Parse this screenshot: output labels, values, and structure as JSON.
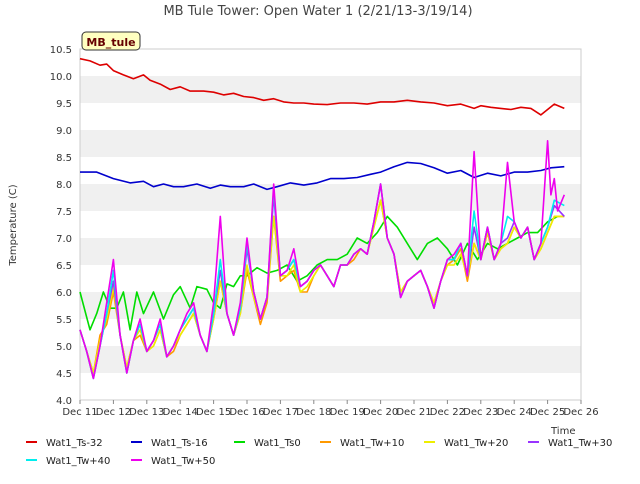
{
  "chart_data": {
    "type": "line",
    "title": "MB Tule Tower: Open Water 1 (2/21/13-3/19/14)",
    "ylabel": "Temperature (C)",
    "xlabel": "Time",
    "site_label": "MB_tule",
    "ylim": [
      4.0,
      10.5
    ],
    "yticks": [
      "4.0",
      "4.5",
      "5.0",
      "5.5",
      "6.0",
      "6.5",
      "7.0",
      "7.5",
      "8.0",
      "8.5",
      "9.0",
      "9.5",
      "10.0",
      "10.5"
    ],
    "xlim": [
      11,
      26
    ],
    "xticks": [
      {
        "v": 11,
        "label": "Dec 11"
      },
      {
        "v": 12,
        "label": "Dec 12"
      },
      {
        "v": 13,
        "label": "Dec 13"
      },
      {
        "v": 14,
        "label": "Dec 14"
      },
      {
        "v": 15,
        "label": "Dec 15"
      },
      {
        "v": 16,
        "label": "Dec 16"
      },
      {
        "v": 17,
        "label": "Dec 17"
      },
      {
        "v": 18,
        "label": "Dec 18"
      },
      {
        "v": 19,
        "label": "Dec 19"
      },
      {
        "v": 20,
        "label": "Dec 20"
      },
      {
        "v": 21,
        "label": "Dec 21"
      },
      {
        "v": 22,
        "label": "Dec 22"
      },
      {
        "v": 23,
        "label": "Dec 23"
      },
      {
        "v": 24,
        "label": "Dec 24"
      },
      {
        "v": 25,
        "label": "Dec 25"
      },
      {
        "v": 26,
        "label": "Dec 26"
      }
    ],
    "grid": "horizontal bands",
    "legend_position": "bottom",
    "series": [
      {
        "name": "Wat1_Ts-32",
        "color": "#dd0000",
        "x": [
          11.0,
          11.3,
          11.6,
          11.8,
          12.0,
          12.3,
          12.6,
          12.9,
          13.1,
          13.4,
          13.7,
          14.0,
          14.3,
          14.7,
          15.0,
          15.3,
          15.6,
          15.9,
          16.2,
          16.5,
          16.8,
          17.1,
          17.4,
          17.7,
          18.0,
          18.4,
          18.8,
          19.2,
          19.6,
          20.0,
          20.4,
          20.8,
          21.2,
          21.6,
          22.0,
          22.4,
          22.8,
          23.0,
          23.3,
          23.6,
          23.9,
          24.2,
          24.5,
          24.8,
          25.0,
          25.2,
          25.5
        ],
        "y": [
          10.32,
          10.28,
          10.2,
          10.22,
          10.1,
          10.02,
          9.95,
          10.02,
          9.92,
          9.85,
          9.75,
          9.8,
          9.72,
          9.72,
          9.7,
          9.65,
          9.68,
          9.62,
          9.6,
          9.55,
          9.58,
          9.52,
          9.5,
          9.5,
          9.48,
          9.47,
          9.5,
          9.5,
          9.48,
          9.52,
          9.52,
          9.55,
          9.52,
          9.5,
          9.45,
          9.48,
          9.4,
          9.45,
          9.42,
          9.4,
          9.38,
          9.42,
          9.4,
          9.28,
          9.38,
          9.48,
          9.4
        ]
      },
      {
        "name": "Wat1_Ts-16",
        "color": "#0000cc",
        "x": [
          11.0,
          11.5,
          12.0,
          12.5,
          12.9,
          13.2,
          13.5,
          13.8,
          14.1,
          14.5,
          14.9,
          15.2,
          15.5,
          15.9,
          16.2,
          16.6,
          16.9,
          17.3,
          17.7,
          18.1,
          18.5,
          18.9,
          19.3,
          19.7,
          20.0,
          20.4,
          20.8,
          21.2,
          21.6,
          22.0,
          22.4,
          22.8,
          23.2,
          23.6,
          24.0,
          24.4,
          24.8,
          25.1,
          25.5
        ],
        "y": [
          8.22,
          8.22,
          8.1,
          8.02,
          8.05,
          7.95,
          8.0,
          7.95,
          7.95,
          8.0,
          7.92,
          7.98,
          7.95,
          7.95,
          8.0,
          7.9,
          7.95,
          8.02,
          7.98,
          8.02,
          8.1,
          8.1,
          8.12,
          8.18,
          8.22,
          8.32,
          8.4,
          8.38,
          8.3,
          8.2,
          8.25,
          8.12,
          8.2,
          8.15,
          8.22,
          8.22,
          8.25,
          8.3,
          8.32
        ]
      },
      {
        "name": "Wat1_Ts0",
        "color": "#00dd00",
        "x": [
          11.0,
          11.3,
          11.5,
          11.7,
          11.9,
          12.1,
          12.3,
          12.5,
          12.7,
          12.9,
          13.2,
          13.5,
          13.8,
          14.0,
          14.3,
          14.5,
          14.8,
          15.0,
          15.2,
          15.4,
          15.6,
          15.8,
          16.0,
          16.3,
          16.6,
          16.9,
          17.2,
          17.5,
          17.8,
          18.1,
          18.4,
          18.7,
          19.0,
          19.3,
          19.6,
          19.9,
          20.2,
          20.5,
          20.8,
          21.1,
          21.4,
          21.7,
          22.0,
          22.3,
          22.6,
          22.9,
          23.2,
          23.5,
          23.8,
          24.1,
          24.4,
          24.7,
          25.0,
          25.3
        ],
        "y": [
          6.0,
          5.3,
          5.6,
          6.0,
          5.7,
          5.7,
          6.0,
          5.3,
          6.0,
          5.6,
          6.0,
          5.5,
          5.95,
          6.1,
          5.7,
          6.1,
          6.05,
          5.8,
          5.7,
          6.15,
          6.1,
          6.3,
          6.3,
          6.45,
          6.35,
          6.4,
          6.5,
          6.2,
          6.3,
          6.5,
          6.6,
          6.6,
          6.7,
          7.0,
          6.9,
          7.1,
          7.4,
          7.2,
          6.9,
          6.6,
          6.9,
          7.0,
          6.8,
          6.5,
          6.9,
          6.6,
          6.9,
          6.8,
          6.9,
          7.0,
          7.1,
          7.1,
          7.3,
          7.4
        ]
      },
      {
        "name": "Wat1_Tw+10",
        "color": "#ff9900",
        "x": [
          11.0,
          11.2,
          11.4,
          11.6,
          11.8,
          12.0,
          12.2,
          12.4,
          12.6,
          12.8,
          13.0,
          13.2,
          13.4,
          13.6,
          13.8,
          14.0,
          14.2,
          14.4,
          14.6,
          14.8,
          15.0,
          15.2,
          15.4,
          15.6,
          15.8,
          16.0,
          16.2,
          16.4,
          16.6,
          16.8,
          17.0,
          17.2,
          17.4,
          17.6,
          17.8,
          18.0,
          18.2,
          18.4,
          18.6,
          18.8,
          19.0,
          19.2,
          19.4,
          19.6,
          19.8,
          20.0,
          20.2,
          20.4,
          20.6,
          20.8,
          21.0,
          21.2,
          21.4,
          21.6,
          21.8,
          22.0,
          22.2,
          22.4,
          22.6,
          22.8,
          23.0,
          23.2,
          23.4,
          23.6,
          23.8,
          24.0,
          24.2,
          24.4,
          24.6,
          24.8,
          25.0,
          25.2,
          25.5
        ],
        "y": [
          5.3,
          4.9,
          4.5,
          5.2,
          5.4,
          6.0,
          5.2,
          4.6,
          5.1,
          5.2,
          4.9,
          5.0,
          5.3,
          4.8,
          4.9,
          5.2,
          5.4,
          5.6,
          5.2,
          4.9,
          5.5,
          6.2,
          5.6,
          5.2,
          5.6,
          6.4,
          5.9,
          5.4,
          5.8,
          7.4,
          6.2,
          6.3,
          6.4,
          6.0,
          6.0,
          6.3,
          6.5,
          6.3,
          6.1,
          6.5,
          6.5,
          6.6,
          6.8,
          6.7,
          7.2,
          7.7,
          7.0,
          6.7,
          6.0,
          6.2,
          6.3,
          6.4,
          6.1,
          5.8,
          6.2,
          6.5,
          6.6,
          6.8,
          6.2,
          6.9,
          6.6,
          7.1,
          6.6,
          6.8,
          6.9,
          7.2,
          7.0,
          7.2,
          6.6,
          6.8,
          7.1,
          7.4,
          7.4
        ]
      },
      {
        "name": "Wat1_Tw+20",
        "color": "#eeee00",
        "x": [
          11.0,
          11.2,
          11.4,
          11.6,
          11.8,
          12.0,
          12.2,
          12.4,
          12.6,
          12.8,
          13.0,
          13.2,
          13.4,
          13.6,
          13.8,
          14.0,
          14.2,
          14.4,
          14.6,
          14.8,
          15.0,
          15.2,
          15.4,
          15.6,
          15.8,
          16.0,
          16.2,
          16.4,
          16.6,
          16.8,
          17.0,
          17.2,
          17.4,
          17.6,
          17.8,
          18.0,
          18.2,
          18.4,
          18.6,
          18.8,
          19.0,
          19.2,
          19.4,
          19.6,
          19.8,
          20.0,
          20.2,
          20.4,
          20.6,
          20.8,
          21.0,
          21.2,
          21.4,
          21.6,
          21.8,
          22.0,
          22.2,
          22.4,
          22.6,
          22.8,
          23.0,
          23.2,
          23.4,
          23.6,
          23.8,
          24.0,
          24.2,
          24.4,
          24.6,
          24.8,
          25.0,
          25.2,
          25.5
        ],
        "y": [
          5.3,
          4.9,
          4.5,
          5.1,
          5.5,
          6.1,
          5.2,
          4.6,
          5.1,
          5.3,
          4.9,
          5.0,
          5.3,
          4.8,
          5.0,
          5.2,
          5.4,
          5.6,
          5.2,
          4.9,
          5.5,
          6.2,
          5.6,
          5.2,
          5.6,
          6.5,
          5.9,
          5.5,
          5.9,
          7.4,
          6.3,
          6.3,
          6.5,
          6.0,
          6.1,
          6.3,
          6.5,
          6.3,
          6.1,
          6.5,
          6.5,
          6.7,
          6.8,
          6.7,
          7.2,
          7.7,
          7.0,
          6.7,
          6.0,
          6.2,
          6.3,
          6.4,
          6.1,
          5.8,
          6.2,
          6.5,
          6.5,
          6.7,
          6.3,
          6.9,
          6.6,
          7.1,
          6.6,
          6.8,
          6.9,
          7.2,
          7.0,
          7.2,
          6.6,
          6.8,
          7.1,
          7.4,
          7.4
        ]
      },
      {
        "name": "Wat1_Tw+30",
        "color": "#9933ff",
        "x": [
          11.0,
          11.2,
          11.4,
          11.6,
          11.8,
          12.0,
          12.2,
          12.4,
          12.6,
          12.8,
          13.0,
          13.2,
          13.4,
          13.6,
          13.8,
          14.0,
          14.2,
          14.4,
          14.6,
          14.8,
          15.0,
          15.2,
          15.4,
          15.6,
          15.8,
          16.0,
          16.2,
          16.4,
          16.6,
          16.8,
          17.0,
          17.2,
          17.4,
          17.6,
          17.8,
          18.0,
          18.2,
          18.4,
          18.6,
          18.8,
          19.0,
          19.2,
          19.4,
          19.6,
          19.8,
          20.0,
          20.2,
          20.4,
          20.6,
          20.8,
          21.0,
          21.2,
          21.4,
          21.6,
          21.8,
          22.0,
          22.2,
          22.4,
          22.6,
          22.8,
          23.0,
          23.2,
          23.4,
          23.6,
          23.8,
          24.0,
          24.2,
          24.4,
          24.6,
          24.8,
          25.0,
          25.2,
          25.5
        ],
        "y": [
          5.3,
          4.9,
          4.4,
          5.0,
          5.6,
          6.2,
          5.2,
          4.5,
          5.1,
          5.4,
          4.9,
          5.1,
          5.4,
          4.8,
          5.0,
          5.3,
          5.5,
          5.7,
          5.2,
          4.9,
          5.6,
          6.4,
          5.6,
          5.2,
          5.7,
          6.8,
          6.0,
          5.5,
          5.9,
          7.8,
          6.3,
          6.4,
          6.6,
          6.1,
          6.2,
          6.4,
          6.5,
          6.3,
          6.1,
          6.5,
          6.5,
          6.7,
          6.8,
          6.7,
          7.3,
          8.0,
          7.0,
          6.7,
          5.9,
          6.2,
          6.3,
          6.4,
          6.1,
          5.7,
          6.2,
          6.6,
          6.6,
          6.9,
          6.3,
          7.2,
          6.6,
          7.2,
          6.6,
          6.9,
          7.0,
          7.3,
          7.0,
          7.2,
          6.6,
          6.9,
          7.2,
          7.6,
          7.4
        ]
      },
      {
        "name": "Wat1_Tw+40",
        "color": "#00eeee",
        "x": [
          11.0,
          11.2,
          11.4,
          11.6,
          11.8,
          12.0,
          12.2,
          12.4,
          12.6,
          12.8,
          13.0,
          13.2,
          13.4,
          13.6,
          13.8,
          14.0,
          14.2,
          14.4,
          14.6,
          14.8,
          15.0,
          15.2,
          15.4,
          15.6,
          15.8,
          16.0,
          16.2,
          16.4,
          16.6,
          16.8,
          17.0,
          17.2,
          17.4,
          17.6,
          17.8,
          18.0,
          18.2,
          18.4,
          18.6,
          18.8,
          19.0,
          19.2,
          19.4,
          19.6,
          19.8,
          20.0,
          20.2,
          20.4,
          20.6,
          20.8,
          21.0,
          21.2,
          21.4,
          21.6,
          21.8,
          22.0,
          22.2,
          22.4,
          22.6,
          22.8,
          23.0,
          23.2,
          23.4,
          23.6,
          23.8,
          24.0,
          24.2,
          24.4,
          24.6,
          24.8,
          25.0,
          25.2,
          25.5
        ],
        "y": [
          5.3,
          4.9,
          4.4,
          5.0,
          5.6,
          6.4,
          5.2,
          4.5,
          5.1,
          5.4,
          4.9,
          5.1,
          5.4,
          4.8,
          5.0,
          5.3,
          5.5,
          5.7,
          5.2,
          4.9,
          5.6,
          6.6,
          5.6,
          5.2,
          5.7,
          6.9,
          6.0,
          5.5,
          5.9,
          7.9,
          6.3,
          6.4,
          6.6,
          6.1,
          6.2,
          6.4,
          6.5,
          6.3,
          6.1,
          6.5,
          6.5,
          6.7,
          6.8,
          6.7,
          7.3,
          8.0,
          7.0,
          6.7,
          5.9,
          6.2,
          6.3,
          6.4,
          6.1,
          5.7,
          6.2,
          6.6,
          6.6,
          6.9,
          6.3,
          7.5,
          6.6,
          7.2,
          6.6,
          6.9,
          7.4,
          7.3,
          7.0,
          7.2,
          6.6,
          6.9,
          7.2,
          7.7,
          7.6
        ]
      },
      {
        "name": "Wat1_Tw+50",
        "color": "#ee00ee",
        "x": [
          11.0,
          11.2,
          11.4,
          11.6,
          11.8,
          12.0,
          12.2,
          12.4,
          12.6,
          12.8,
          13.0,
          13.2,
          13.4,
          13.6,
          13.8,
          14.0,
          14.2,
          14.4,
          14.6,
          14.8,
          15.0,
          15.2,
          15.4,
          15.6,
          15.8,
          16.0,
          16.2,
          16.4,
          16.6,
          16.8,
          17.0,
          17.2,
          17.4,
          17.6,
          17.8,
          18.0,
          18.2,
          18.4,
          18.6,
          18.8,
          19.0,
          19.2,
          19.4,
          19.6,
          19.8,
          20.0,
          20.2,
          20.4,
          20.6,
          20.8,
          21.0,
          21.2,
          21.4,
          21.6,
          21.8,
          22.0,
          22.2,
          22.4,
          22.6,
          22.8,
          23.0,
          23.2,
          23.4,
          23.6,
          23.8,
          24.0,
          24.2,
          24.4,
          24.6,
          24.8,
          25.0,
          25.1,
          25.2,
          25.3,
          25.5
        ],
        "y": [
          5.3,
          4.9,
          4.4,
          5.0,
          5.8,
          6.6,
          5.2,
          4.5,
          5.1,
          5.5,
          4.9,
          5.1,
          5.5,
          4.8,
          5.0,
          5.3,
          5.6,
          5.8,
          5.2,
          4.9,
          5.8,
          7.4,
          5.6,
          5.2,
          5.8,
          7.0,
          6.0,
          5.5,
          5.9,
          8.0,
          6.3,
          6.4,
          6.8,
          6.1,
          6.2,
          6.4,
          6.5,
          6.3,
          6.1,
          6.5,
          6.5,
          6.7,
          6.8,
          6.7,
          7.3,
          8.0,
          7.0,
          6.7,
          5.9,
          6.2,
          6.3,
          6.4,
          6.1,
          5.7,
          6.2,
          6.6,
          6.7,
          6.9,
          6.3,
          8.6,
          6.6,
          7.2,
          6.6,
          6.9,
          8.4,
          7.3,
          7.0,
          7.2,
          6.6,
          6.9,
          8.8,
          7.8,
          8.1,
          7.5,
          7.8
        ]
      }
    ]
  }
}
